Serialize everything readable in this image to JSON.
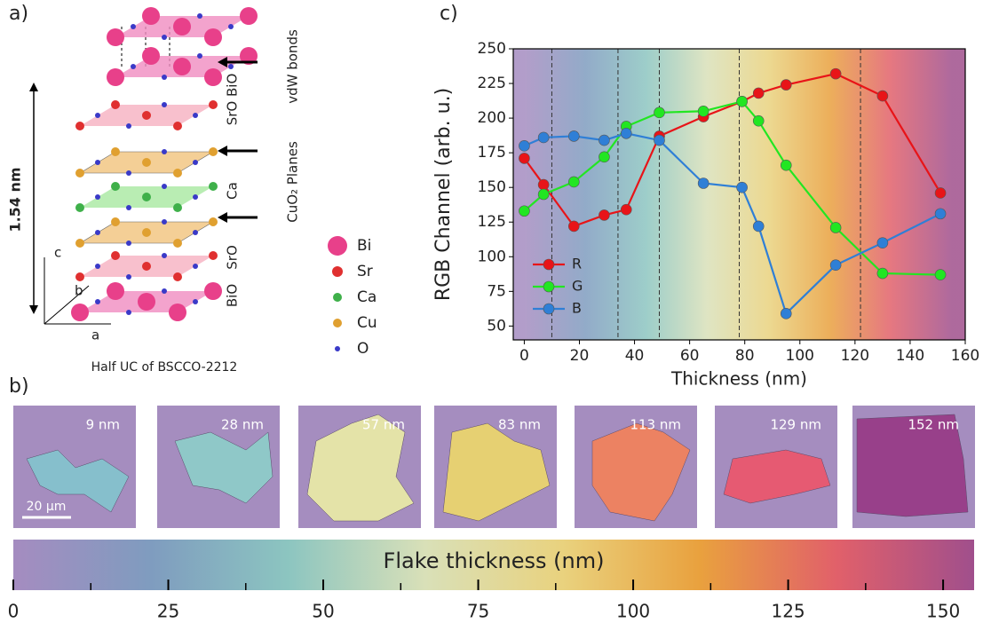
{
  "labels": {
    "a": "a)",
    "b": "b)",
    "c": "c)"
  },
  "structure": {
    "side_labels": [
      "vdW bonds",
      "CuO₂ Planes"
    ],
    "layer_labels": [
      "SrO BiO",
      "Ca",
      "SrO",
      "BiO"
    ],
    "dimension": "1.54 nm",
    "axes": [
      "c",
      "b",
      "a"
    ],
    "caption": "Half UC of BSCCO-2212",
    "legend": [
      {
        "name": "Bi",
        "color": "#e8408a"
      },
      {
        "name": "Sr",
        "color": "#e03030"
      },
      {
        "name": "Ca",
        "color": "#3fb04a"
      },
      {
        "name": "Cu",
        "color": "#e0a030"
      },
      {
        "name": "O",
        "color": "#3a3ac8"
      }
    ]
  },
  "flakes": {
    "scale_bar": "20 µm",
    "items": [
      {
        "label": "9 nm",
        "color": "#86bfcc"
      },
      {
        "label": "28 nm",
        "color": "#8fc8c8"
      },
      {
        "label": "57 nm",
        "color": "#e4e3a8"
      },
      {
        "label": "83 nm",
        "color": "#e6d072"
      },
      {
        "label": "113 nm",
        "color": "#ec8262"
      },
      {
        "label": "129 nm",
        "color": "#e65a72"
      },
      {
        "label": "152 nm",
        "color": "#98408a"
      }
    ]
  },
  "chart_data": [
    {
      "type": "line",
      "xlabel": "Thickness (nm)",
      "ylabel": "RGB Channel (arb. u.)",
      "x": [
        0,
        7,
        18,
        29,
        37,
        49,
        65,
        79,
        85,
        95,
        113,
        130,
        151
      ],
      "series": [
        {
          "name": "R",
          "color": "#e81418",
          "values": [
            171,
            152,
            122,
            130,
            134,
            187,
            201,
            212,
            218,
            224,
            232,
            216,
            146
          ]
        },
        {
          "name": "G",
          "color": "#22e622",
          "values": [
            133,
            145,
            154,
            172,
            194,
            204,
            205,
            212,
            198,
            166,
            121,
            88,
            87
          ]
        },
        {
          "name": "B",
          "color": "#2f7fd6",
          "values": [
            180,
            186,
            187,
            184,
            189,
            184,
            153,
            150,
            122,
            59,
            94,
            110,
            131
          ]
        }
      ],
      "xlim": [
        -4,
        160
      ],
      "ylim": [
        40,
        250
      ],
      "xticks": [
        0,
        20,
        40,
        60,
        80,
        100,
        120,
        140,
        160
      ],
      "yticks": [
        50,
        75,
        100,
        125,
        150,
        175,
        200,
        225,
        250
      ],
      "vlines": [
        10,
        34,
        49,
        78,
        122
      ],
      "legend": "lower left"
    },
    {
      "type": "colorbar",
      "title": "Flake thickness (nm)",
      "xlim": [
        0,
        155
      ],
      "xticks": [
        0,
        25,
        50,
        75,
        100,
        125,
        150
      ],
      "minor_ticks": [
        12.5,
        37.5,
        62.5,
        87.5,
        112.5,
        137.5
      ],
      "colormap": [
        "#a58cc0",
        "#7f9cbf",
        "#8cc5c0",
        "#d9e0b8",
        "#e9d27e",
        "#e9a13e",
        "#e1606a",
        "#a04f8c"
      ]
    }
  ]
}
